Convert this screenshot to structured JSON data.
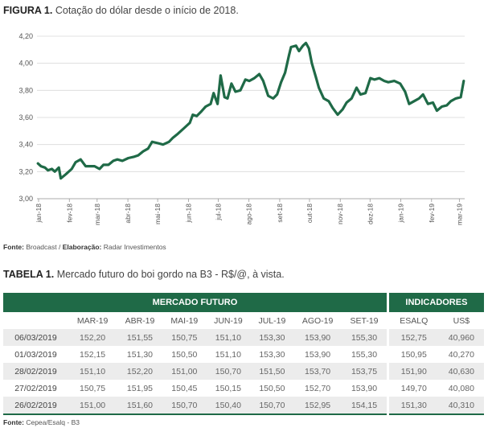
{
  "figure": {
    "label": "FIGURA 1.",
    "title": "Cotação do dólar desde o início de 2018."
  },
  "chart_data": {
    "type": "line",
    "ylim": [
      3.0,
      4.2
    ],
    "yticks": [
      "4,20",
      "4,00",
      "3,80",
      "3,60",
      "3,40",
      "3,20",
      "3,00"
    ],
    "xticks": [
      "jan-18",
      "fev-18",
      "mar-18",
      "abr-18",
      "mai-18",
      "jun-18",
      "jul-18",
      "ago-18",
      "set-18",
      "out-18",
      "nov-18",
      "dez-18",
      "jan-19",
      "fev-19",
      "mar-19"
    ],
    "grid": true,
    "line_color": "#1f6a47",
    "series": [
      {
        "values": [
          [
            "2018-01-02",
            3.26
          ],
          [
            "2018-01-05",
            3.24
          ],
          [
            "2018-01-09",
            3.23
          ],
          [
            "2018-01-12",
            3.21
          ],
          [
            "2018-01-16",
            3.22
          ],
          [
            "2018-01-19",
            3.2
          ],
          [
            "2018-01-23",
            3.23
          ],
          [
            "2018-01-25",
            3.15
          ],
          [
            "2018-01-30",
            3.18
          ],
          [
            "2018-02-05",
            3.22
          ],
          [
            "2018-02-09",
            3.27
          ],
          [
            "2018-02-14",
            3.29
          ],
          [
            "2018-02-19",
            3.24
          ],
          [
            "2018-02-23",
            3.24
          ],
          [
            "2018-02-28",
            3.24
          ],
          [
            "2018-03-05",
            3.22
          ],
          [
            "2018-03-09",
            3.25
          ],
          [
            "2018-03-14",
            3.25
          ],
          [
            "2018-03-19",
            3.28
          ],
          [
            "2018-03-23",
            3.29
          ],
          [
            "2018-03-28",
            3.28
          ],
          [
            "2018-04-03",
            3.3
          ],
          [
            "2018-04-09",
            3.31
          ],
          [
            "2018-04-13",
            3.32
          ],
          [
            "2018-04-18",
            3.35
          ],
          [
            "2018-04-23",
            3.37
          ],
          [
            "2018-04-27",
            3.42
          ],
          [
            "2018-05-03",
            3.41
          ],
          [
            "2018-05-08",
            3.4
          ],
          [
            "2018-05-14",
            3.42
          ],
          [
            "2018-05-18",
            3.45
          ],
          [
            "2018-05-23",
            3.48
          ],
          [
            "2018-05-29",
            3.52
          ],
          [
            "2018-06-04",
            3.56
          ],
          [
            "2018-06-07",
            3.62
          ],
          [
            "2018-06-11",
            3.61
          ],
          [
            "2018-06-15",
            3.64
          ],
          [
            "2018-06-20",
            3.68
          ],
          [
            "2018-06-25",
            3.7
          ],
          [
            "2018-06-28",
            3.78
          ],
          [
            "2018-07-02",
            3.7
          ],
          [
            "2018-07-05",
            3.91
          ],
          [
            "2018-07-09",
            3.75
          ],
          [
            "2018-07-12",
            3.74
          ],
          [
            "2018-07-16",
            3.85
          ],
          [
            "2018-07-20",
            3.79
          ],
          [
            "2018-07-25",
            3.8
          ],
          [
            "2018-07-30",
            3.88
          ],
          [
            "2018-08-03",
            3.87
          ],
          [
            "2018-08-08",
            3.89
          ],
          [
            "2018-08-13",
            3.92
          ],
          [
            "2018-08-17",
            3.87
          ],
          [
            "2018-08-22",
            3.76
          ],
          [
            "2018-08-27",
            3.74
          ],
          [
            "2018-08-31",
            3.77
          ],
          [
            "2018-09-04",
            3.86
          ],
          [
            "2018-09-08",
            3.93
          ],
          [
            "2018-09-12",
            4.06
          ],
          [
            "2018-09-14",
            4.12
          ],
          [
            "2018-09-19",
            4.13
          ],
          [
            "2018-09-22",
            4.09
          ],
          [
            "2018-09-26",
            4.13
          ],
          [
            "2018-09-29",
            4.15
          ],
          [
            "2018-10-02",
            4.11
          ],
          [
            "2018-10-05",
            4.0
          ],
          [
            "2018-10-09",
            3.9
          ],
          [
            "2018-10-12",
            3.82
          ],
          [
            "2018-10-17",
            3.74
          ],
          [
            "2018-10-22",
            3.72
          ],
          [
            "2018-10-26",
            3.67
          ],
          [
            "2018-10-31",
            3.62
          ],
          [
            "2018-11-05",
            3.66
          ],
          [
            "2018-11-09",
            3.71
          ],
          [
            "2018-11-14",
            3.74
          ],
          [
            "2018-11-19",
            3.82
          ],
          [
            "2018-11-23",
            3.77
          ],
          [
            "2018-11-28",
            3.78
          ],
          [
            "2018-12-03",
            3.89
          ],
          [
            "2018-12-07",
            3.88
          ],
          [
            "2018-12-12",
            3.89
          ],
          [
            "2018-12-17",
            3.87
          ],
          [
            "2018-12-21",
            3.86
          ],
          [
            "2018-12-27",
            3.87
          ],
          [
            "2019-01-02",
            3.85
          ],
          [
            "2019-01-07",
            3.79
          ],
          [
            "2019-01-11",
            3.7
          ],
          [
            "2019-01-16",
            3.72
          ],
          [
            "2019-01-21",
            3.74
          ],
          [
            "2019-01-25",
            3.77
          ],
          [
            "2019-01-30",
            3.7
          ],
          [
            "2019-02-04",
            3.71
          ],
          [
            "2019-02-08",
            3.65
          ],
          [
            "2019-02-13",
            3.68
          ],
          [
            "2019-02-18",
            3.69
          ],
          [
            "2019-02-22",
            3.72
          ],
          [
            "2019-02-27",
            3.74
          ],
          [
            "2019-03-04",
            3.75
          ],
          [
            "2019-03-07",
            3.87
          ]
        ]
      }
    ]
  },
  "source1": {
    "label": "Fonte:",
    "text": "Broadcast / ",
    "label2": "Elaboração:",
    "text2": "Radar Investimentos"
  },
  "table": {
    "label": "TABELA 1.",
    "title": "Mercado futuro do boi gordo na B3 - R$/@, à vista.",
    "group_futures": "MERCADO FUTURO",
    "group_indicators": "INDICADORES",
    "columns": [
      "MAR-19",
      "ABR-19",
      "MAI-19",
      "JUN-19",
      "JUL-19",
      "AGO-19",
      "SET-19",
      "ESALQ",
      "US$"
    ],
    "rows": [
      {
        "date": "06/03/2019",
        "values": [
          "152,20",
          "151,55",
          "150,75",
          "151,10",
          "153,30",
          "153,90",
          "155,30",
          "152,75",
          "40,960"
        ]
      },
      {
        "date": "01/03/2019",
        "values": [
          "152,15",
          "151,30",
          "150,50",
          "151,10",
          "153,30",
          "153,90",
          "155,30",
          "150,95",
          "40,270"
        ]
      },
      {
        "date": "28/02/2019",
        "values": [
          "151,10",
          "152,20",
          "151,00",
          "150,70",
          "151,50",
          "153,70",
          "153,75",
          "151,90",
          "40,630"
        ]
      },
      {
        "date": "27/02/2019",
        "values": [
          "150,75",
          "151,95",
          "150,45",
          "150,15",
          "150,50",
          "152,70",
          "153,90",
          "149,70",
          "40,080"
        ]
      },
      {
        "date": "26/02/2019",
        "values": [
          "151,00",
          "151,60",
          "150,70",
          "150,40",
          "150,70",
          "152,95",
          "154,15",
          "151,30",
          "40,310"
        ]
      }
    ]
  },
  "source2": {
    "label": "Fonte:",
    "text": "Cepea/Esalq - B3"
  }
}
